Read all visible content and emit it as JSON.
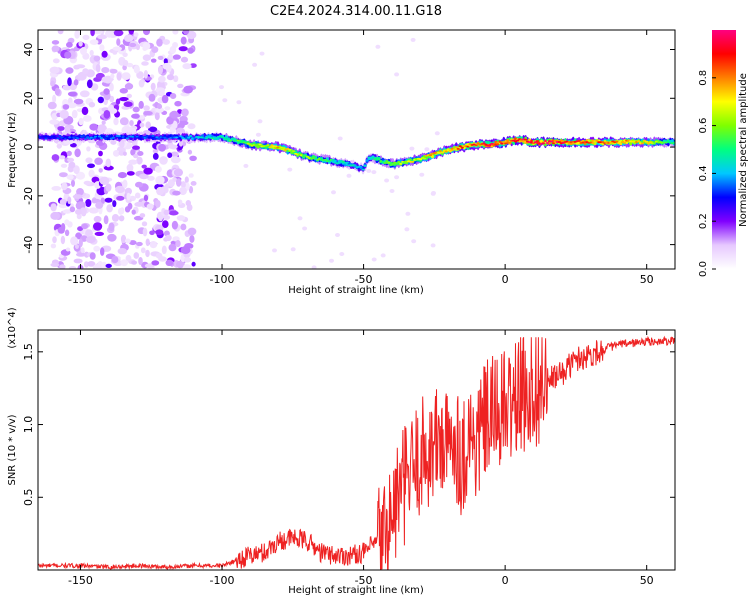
{
  "chart_data": [
    {
      "type": "heatmap",
      "title": "C2E4.2024.314.00.11.G18",
      "xlabel": "Height of straight line (km)",
      "ylabel": "Frequency (Hz)",
      "xlim": [
        -165,
        60
      ],
      "ylim": [
        -50,
        48
      ],
      "x_ticks": [
        -150,
        -100,
        -50,
        0,
        50
      ],
      "y_ticks": [
        -40,
        -20,
        0,
        20,
        40
      ],
      "colorbar": {
        "label": "Normalized spectral amplitude",
        "range": [
          0,
          1
        ],
        "ticks": [
          0.0,
          0.2,
          0.4,
          0.6,
          0.8
        ],
        "colormap": [
          "#ffffff",
          "#e6c8ff",
          "#8000ff",
          "#0000ff",
          "#00c8ff",
          "#00ff80",
          "#7fff00",
          "#ffff00",
          "#ff8000",
          "#ff0000",
          "#ff0080"
        ]
      },
      "ridge": {
        "x": [
          -165,
          -150,
          -140,
          -130,
          -120,
          -110,
          -100,
          -90,
          -80,
          -70,
          -60,
          -55,
          -50,
          -48,
          -45,
          -40,
          -35,
          -30,
          -25,
          -20,
          -15,
          -10,
          -5,
          0,
          5,
          10,
          15,
          20,
          30,
          40,
          50,
          55,
          60
        ],
        "y": [
          4,
          4,
          4,
          4,
          4,
          4,
          4,
          1,
          0,
          -4,
          -6,
          -7,
          -9,
          -4,
          -5,
          -7,
          -6,
          -5,
          -3,
          -1,
          0,
          1,
          1,
          2,
          3,
          2,
          2,
          2,
          2,
          2,
          2,
          2,
          2
        ],
        "amplitude": [
          0.3,
          0.35,
          0.35,
          0.35,
          0.35,
          0.4,
          0.5,
          0.6,
          0.75,
          0.6,
          0.5,
          0.45,
          0.4,
          0.45,
          0.55,
          0.6,
          0.65,
          0.7,
          0.75,
          0.8,
          0.85,
          0.85,
          0.9,
          0.9,
          0.95,
          0.95,
          0.95,
          0.9,
          0.85,
          0.8,
          0.7,
          0.6,
          0.5
        ]
      },
      "noise_region_x": [
        -160,
        -110
      ]
    },
    {
      "type": "line",
      "xlabel": "Height of straight line (km)",
      "ylabel": "SNR (10 * v/v)",
      "y_multiplier": "(x10^4)",
      "xlim": [
        -165,
        60
      ],
      "ylim": [
        0,
        1.65
      ],
      "x_ticks": [
        -150,
        -100,
        -50,
        0,
        50
      ],
      "y_ticks": [
        0.5,
        1.0,
        1.5
      ],
      "color": "#ee2222",
      "series": [
        {
          "x": [
            -165,
            -150,
            -140,
            -130,
            -120,
            -110,
            -100,
            -90,
            -85,
            -80,
            -75,
            -70,
            -65,
            -60,
            -55,
            -50,
            -45,
            -42,
            -40,
            -38,
            -35,
            -32,
            -30,
            -28,
            -25,
            -22,
            -20,
            -18,
            -16,
            -15,
            -13,
            -10,
            -8,
            -5,
            -2,
            0,
            5,
            10,
            15,
            20,
            25,
            30,
            35,
            40,
            45,
            50,
            55,
            60
          ],
          "y": [
            0.03,
            0.03,
            0.02,
            0.03,
            0.02,
            0.03,
            0.03,
            0.1,
            0.12,
            0.2,
            0.22,
            0.2,
            0.12,
            0.1,
            0.1,
            0.12,
            0.2,
            0.25,
            0.35,
            0.5,
            0.6,
            0.7,
            0.78,
            0.8,
            0.85,
            0.9,
            0.8,
            0.95,
            0.8,
            0.75,
            0.95,
            0.85,
            1.0,
            1.05,
            1.1,
            1.1,
            1.2,
            1.25,
            1.3,
            1.35,
            1.45,
            1.48,
            1.52,
            1.55,
            1.56,
            1.57,
            1.57,
            1.58
          ]
        }
      ]
    }
  ]
}
